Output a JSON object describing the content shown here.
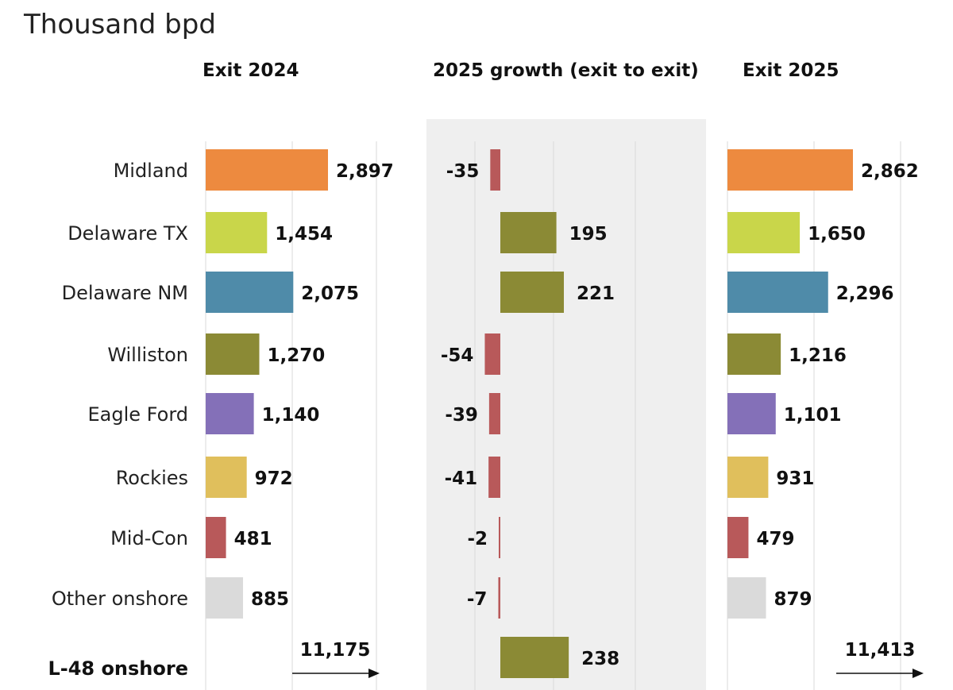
{
  "chart_data": {
    "type": "bar",
    "title": "Thousand bpd",
    "categories": [
      "Midland",
      "Delaware TX",
      "Delaware NM",
      "Williston",
      "Eagle Ford",
      "Rockies",
      "Mid-Con",
      "Other onshore"
    ],
    "total_category": "L-48 onshore",
    "colors": [
      "#ED8A3F",
      "#C9D64A",
      "#4F8BA9",
      "#8B8A35",
      "#8470B8",
      "#E0BF5C",
      "#B8595A",
      "#DADADA"
    ],
    "growth_negative_color": "#B8595A",
    "growth_positive_color": "#8B8A35",
    "panels": [
      {
        "id": "exit2024",
        "title": "Exit 2024",
        "values": [
          2897,
          1454,
          2075,
          1270,
          1140,
          972,
          481,
          885
        ],
        "labels": [
          "2,897",
          "1,454",
          "2,075",
          "1,270",
          "1,140",
          "972",
          "481",
          "885"
        ],
        "total": 11175,
        "total_label": "11,175",
        "xlim": [
          0,
          4000
        ]
      },
      {
        "id": "growth2025",
        "title": "2025 growth (exit to exit)",
        "values": [
          -35,
          195,
          221,
          -54,
          -39,
          -41,
          -2,
          -7
        ],
        "labels": [
          "-35",
          "195",
          "221",
          "-54",
          "-39",
          "-41",
          "-2",
          "-7"
        ],
        "total": 238,
        "total_label": "238",
        "xlim": [
          -100,
          700
        ]
      },
      {
        "id": "exit2025",
        "title": "Exit 2025",
        "values": [
          2862,
          1650,
          2296,
          1216,
          1101,
          931,
          479,
          879
        ],
        "labels": [
          "2,862",
          "1,650",
          "2,296",
          "1,216",
          "1,101",
          "931",
          "479",
          "879"
        ],
        "total": 11413,
        "total_label": "11,413",
        "xlim": [
          0,
          4000
        ]
      }
    ]
  }
}
